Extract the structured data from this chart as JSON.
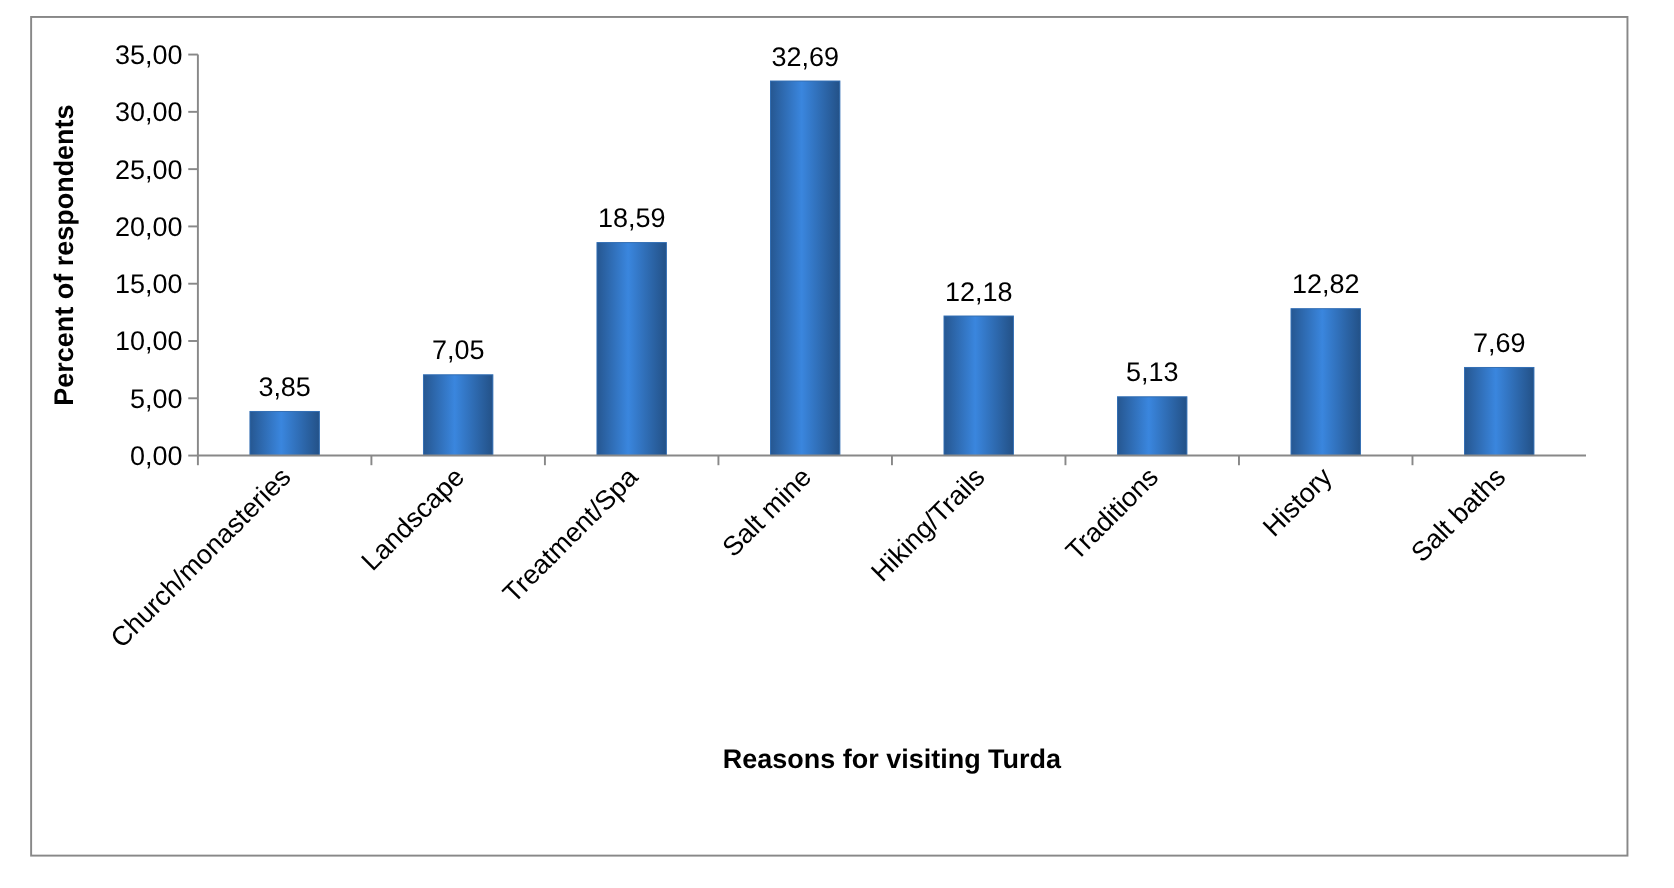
{
  "chart_data": {
    "type": "bar",
    "xlabel": "Reasons for visiting Turda",
    "ylabel": "Percent of respondents",
    "categories": [
      "Church/monasteries",
      "Landscape",
      "Treatment/Spa",
      "Salt mine",
      "Hiking/Trails",
      "Traditions",
      "History",
      "Salt baths"
    ],
    "values": [
      3.85,
      7.05,
      18.59,
      32.69,
      12.18,
      5.13,
      12.82,
      7.69
    ],
    "value_labels": [
      "3,85",
      "7,05",
      "18,59",
      "32,69",
      "12,18",
      "5,13",
      "12,82",
      "7,69"
    ],
    "color": "#2f6cb3",
    "ylim": [
      0,
      35
    ],
    "yticks": [
      {
        "value": 0,
        "label": "0,00"
      },
      {
        "value": 5,
        "label": "5,00"
      },
      {
        "value": 10,
        "label": "10,00"
      },
      {
        "value": 15,
        "label": "15,00"
      },
      {
        "value": 20,
        "label": "20,00"
      },
      {
        "value": 25,
        "label": "25,00"
      },
      {
        "value": 30,
        "label": "30,00"
      },
      {
        "value": 35,
        "label": "35,00"
      }
    ],
    "grid": false
  }
}
